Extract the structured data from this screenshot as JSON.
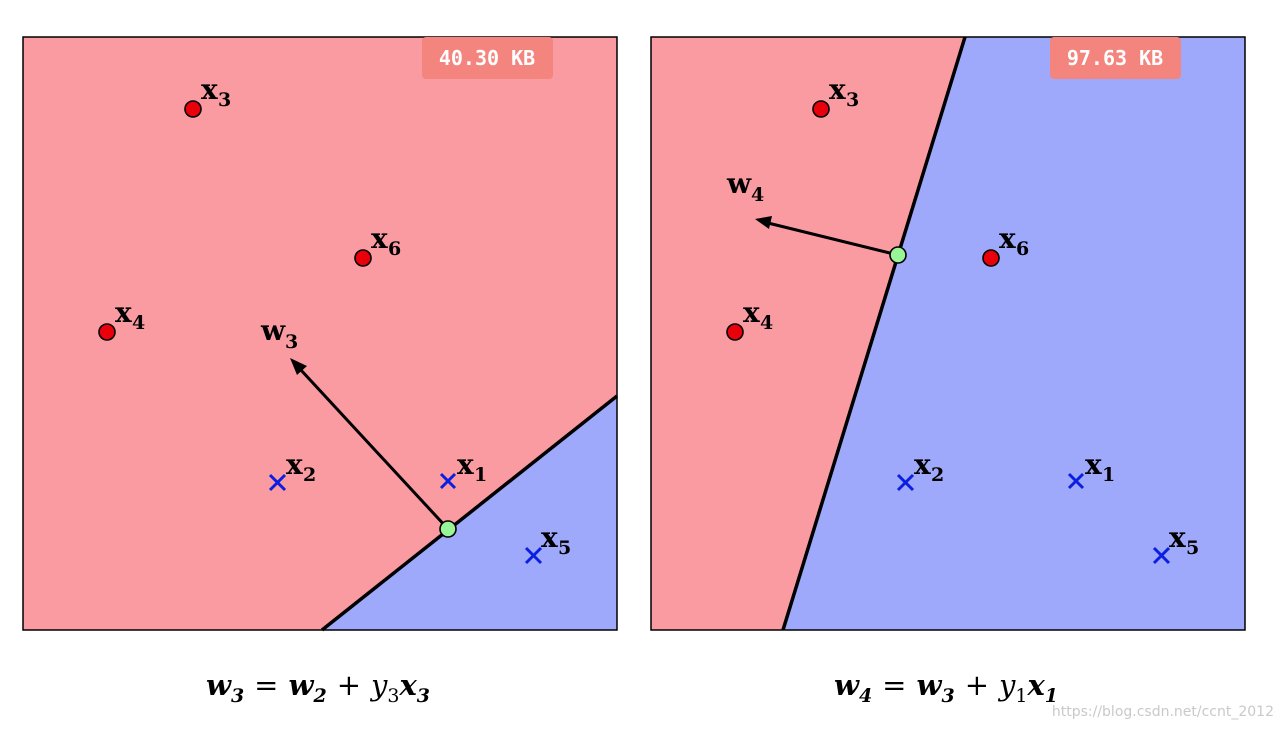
{
  "panels": [
    {
      "badge": "40.30 KB",
      "weight": {
        "name": "w",
        "sub": "3"
      },
      "points": [
        {
          "name": "x",
          "sub": "1",
          "class": "negative"
        },
        {
          "name": "x",
          "sub": "2",
          "class": "negative"
        },
        {
          "name": "x",
          "sub": "3",
          "class": "positive"
        },
        {
          "name": "x",
          "sub": "4",
          "class": "positive"
        },
        {
          "name": "x",
          "sub": "5",
          "class": "negative"
        },
        {
          "name": "x",
          "sub": "6",
          "class": "positive"
        }
      ],
      "caption": {
        "lhs": "w",
        "lhs_sub": "3",
        "eq": "=",
        "t1": "w",
        "t1_sub": "2",
        "plus": "+",
        "coef": "y",
        "coef_sub": "3",
        "vec": "x",
        "vec_sub": "3"
      }
    },
    {
      "badge": "97.63 KB",
      "weight": {
        "name": "w",
        "sub": "4"
      },
      "points": [
        {
          "name": "x",
          "sub": "1",
          "class": "negative"
        },
        {
          "name": "x",
          "sub": "2",
          "class": "negative"
        },
        {
          "name": "x",
          "sub": "3",
          "class": "positive"
        },
        {
          "name": "x",
          "sub": "4",
          "class": "positive"
        },
        {
          "name": "x",
          "sub": "5",
          "class": "negative"
        },
        {
          "name": "x",
          "sub": "6",
          "class": "positive"
        }
      ],
      "caption": {
        "lhs": "w",
        "lhs_sub": "4",
        "eq": "=",
        "t1": "w",
        "t1_sub": "3",
        "plus": "+",
        "coef": "y",
        "coef_sub": "1",
        "vec": "x",
        "vec_sub": "1"
      }
    }
  ],
  "watermark": "https://blog.csdn.net/ccnt_2012",
  "colors": {
    "positive_region": "#fa9ba2",
    "negative_region": "#9fa9fc",
    "positive_point": "#e8000b",
    "negative_point": "#0a1fe0",
    "pivot_point": "#98f598",
    "badge": "#f4847e"
  }
}
